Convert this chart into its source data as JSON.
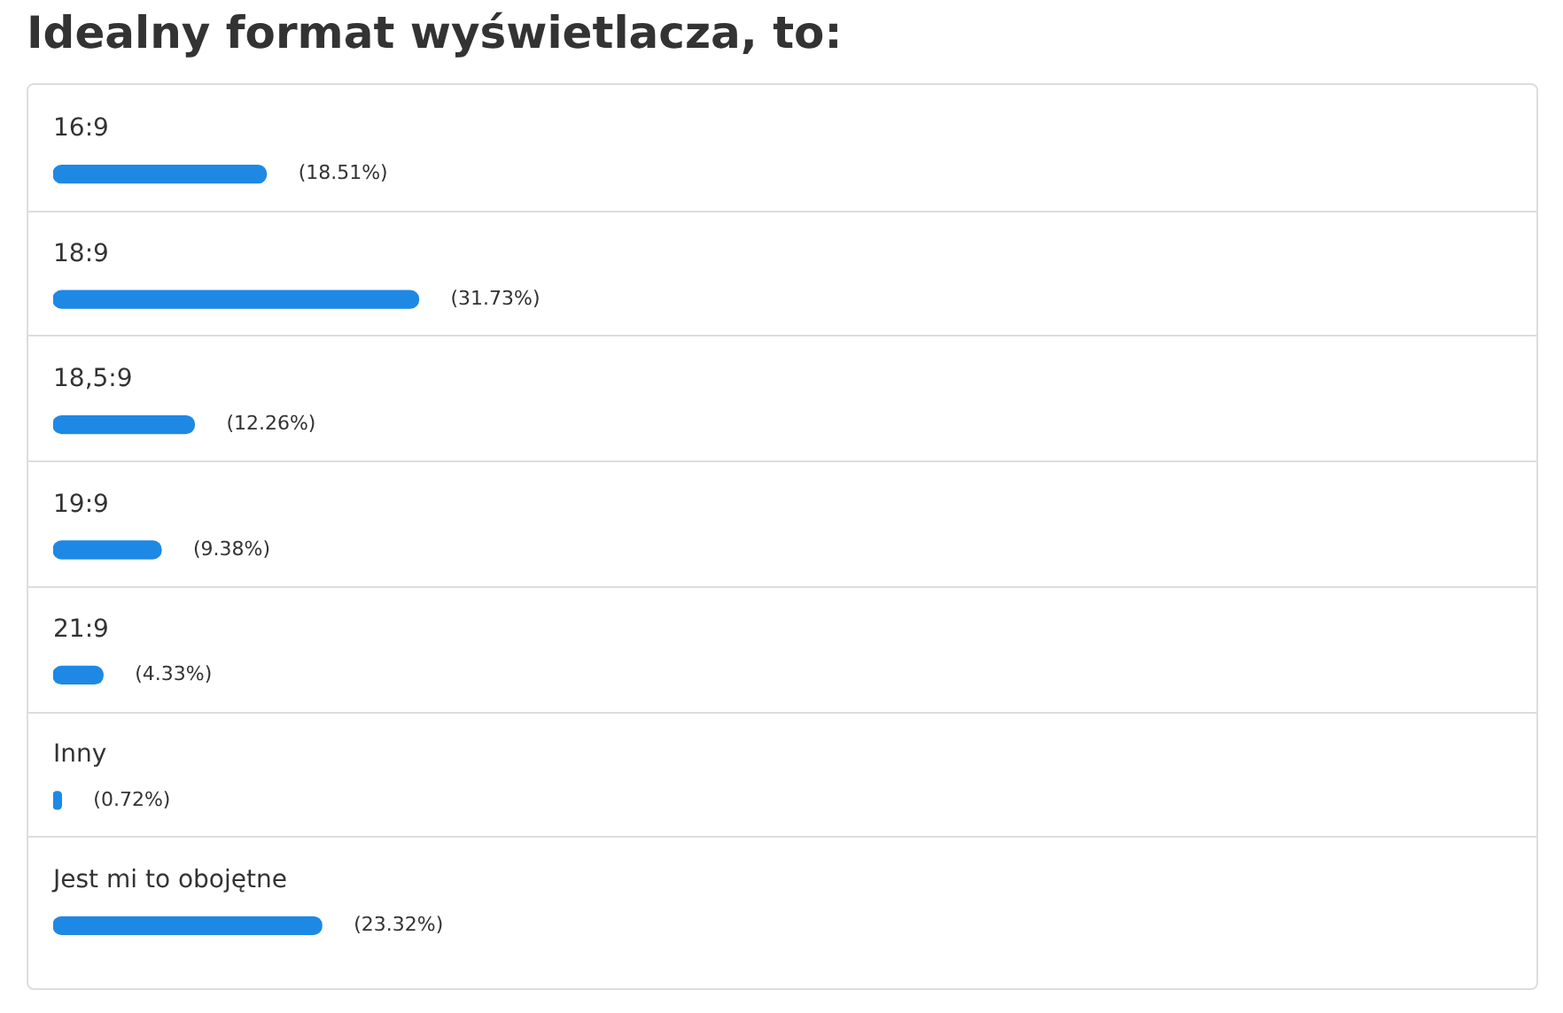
{
  "chart_data": {
    "type": "bar",
    "orientation": "horizontal",
    "title": "Idealny format wyświetlacza, to:",
    "categories": [
      "16:9",
      "18:9",
      "18,5:9",
      "19:9",
      "21:9",
      "Inny",
      "Jest mi to obojętne"
    ],
    "values": [
      18.51,
      31.73,
      12.26,
      9.38,
      4.33,
      0.72,
      23.32
    ],
    "value_labels": [
      "(18.51%)",
      "(31.73%)",
      "(12.26%)",
      "(9.38%)",
      "(4.33%)",
      "(0.72%)",
      "(23.32%)"
    ],
    "color": "#1e88e5",
    "tick_labels": "y"
  }
}
